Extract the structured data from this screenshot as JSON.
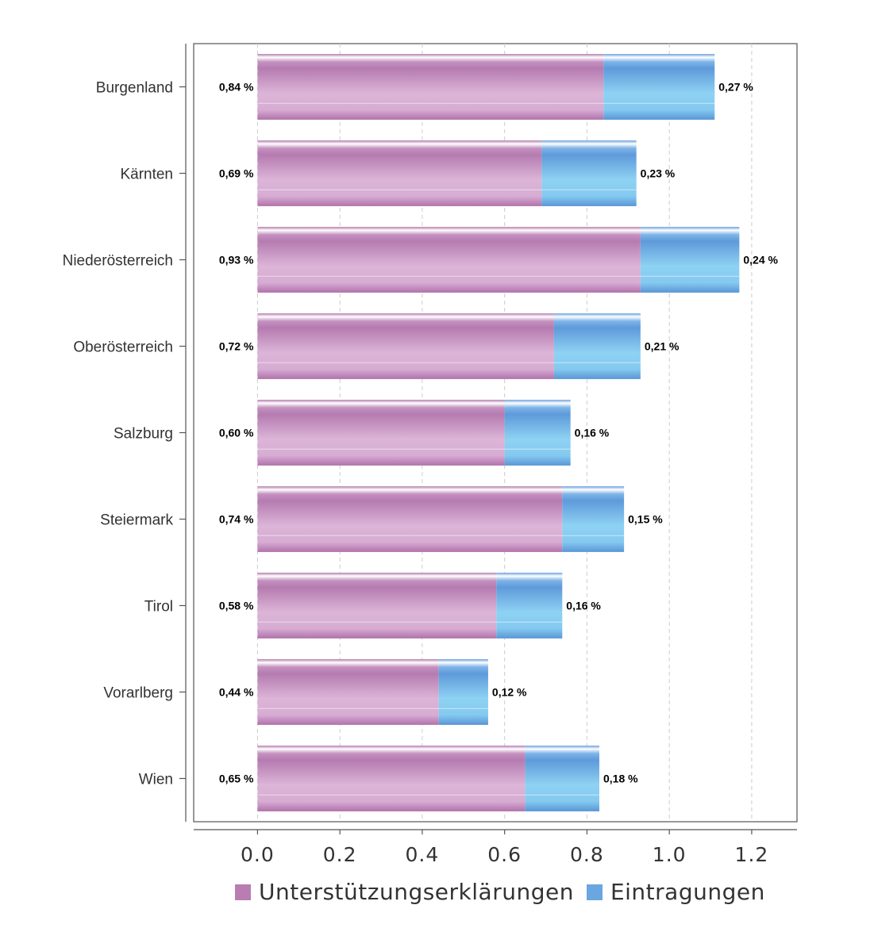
{
  "chart_data": {
    "type": "bar",
    "orientation": "horizontal",
    "stacked": true,
    "categories": [
      "Burgenland",
      "Kärnten",
      "Niederösterreich",
      "Oberösterreich",
      "Salzburg",
      "Steiermark",
      "Tirol",
      "Vorarlberg",
      "Wien"
    ],
    "series": [
      {
        "name": "Unterstützungserklärungen",
        "color": "#b97db4",
        "values": [
          0.84,
          0.69,
          0.93,
          0.72,
          0.6,
          0.74,
          0.58,
          0.44,
          0.65
        ],
        "labels": [
          "0,84 %",
          "0,69 %",
          "0,93 %",
          "0,72 %",
          "0,60 %",
          "0,74 %",
          "0,58 %",
          "0,44 %",
          "0,65 %"
        ]
      },
      {
        "name": "Eintragungen",
        "color": "#6aa6df",
        "values": [
          0.27,
          0.23,
          0.24,
          0.21,
          0.16,
          0.15,
          0.16,
          0.12,
          0.18
        ],
        "labels": [
          "0,27 %",
          "0,23 %",
          "0,24 %",
          "0,21 %",
          "0,16 %",
          "0,15 %",
          "0,16 %",
          "0,12 %",
          "0,18 %"
        ]
      }
    ],
    "xticks": [
      "0.0",
      "0.2",
      "0.4",
      "0.6",
      "0.8",
      "1.0",
      "1.2"
    ],
    "xlim": [
      -0.155,
      1.31
    ],
    "grid": "vertical dashed",
    "legend_position": "bottom",
    "title": "",
    "xlabel": "",
    "ylabel": ""
  }
}
